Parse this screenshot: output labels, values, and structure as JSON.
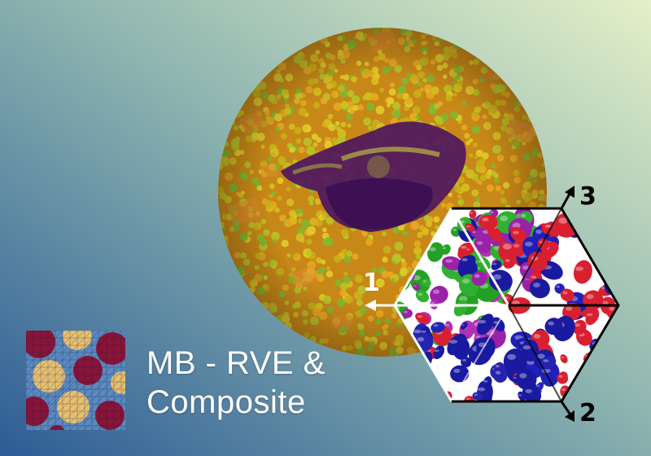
{
  "title": {
    "line1": "MB - RVE &",
    "line2": "Composite"
  },
  "axes": {
    "axis1": "1",
    "axis2": "2",
    "axis3": "3"
  },
  "colors": {
    "bg_top_right": "#e2efc6",
    "bg_bottom_left": "#2f5f98",
    "disc_base": "#c98a18",
    "fiber_yellow": "#d8c020",
    "fiber_green": "#78b830",
    "defect_purple": "#5a1a6a",
    "sphere_blue": "#1a1aa0",
    "sphere_red": "#d82030",
    "sphere_green": "#30b030",
    "sphere_purple": "#9020a0",
    "mesh_red": "#8a1438",
    "mesh_yellow": "#e6c070",
    "mesh_blue": "#5a8ac0"
  }
}
